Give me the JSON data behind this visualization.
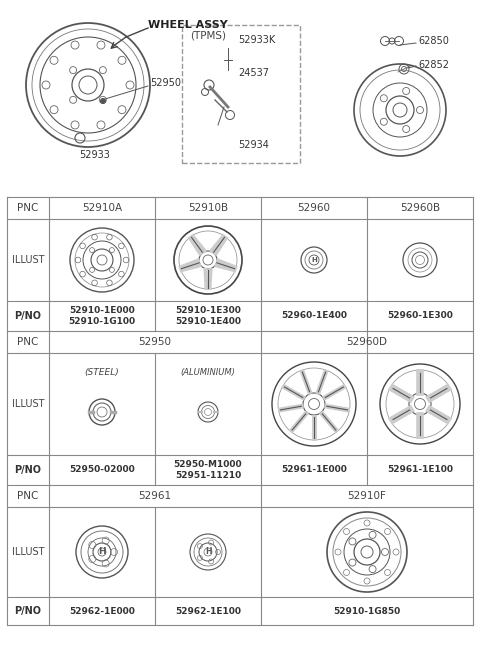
{
  "bg_color": "#ffffff",
  "line_color": "#666666",
  "text_color": "#333333",
  "table": {
    "row1_pnc": [
      "PNC",
      "52910A",
      "52910B",
      "52960",
      "52960B"
    ],
    "row1_pno": [
      "P/NO",
      "52910-1E000\n52910-1G100",
      "52910-1E300\n52910-1E400",
      "52960-1E400",
      "52960-1E300"
    ],
    "row2_pnc_left": "52950",
    "row2_pnc_right": "52960D",
    "row2_sub": [
      "(STEEL)",
      "(ALUMINIUM)"
    ],
    "row2_pno": [
      "P/NO",
      "52950-02000",
      "52950-M1000\n52951-11210",
      "52961-1E000",
      "52961-1E100"
    ],
    "row3_pnc_left": "52961",
    "row3_pnc_right": "52910F",
    "row3_pno": [
      "P/NO",
      "52962-1E000",
      "52962-1E100",
      "52910-1G850"
    ]
  },
  "top": {
    "wheel_label": "WHEEL ASSY",
    "parts_left": [
      "52950",
      "52933"
    ],
    "tpms_label": "(TPMS)",
    "tpms_parts": [
      "52933K",
      "24537",
      "52934"
    ],
    "parts_right": [
      "62850",
      "62852"
    ]
  }
}
